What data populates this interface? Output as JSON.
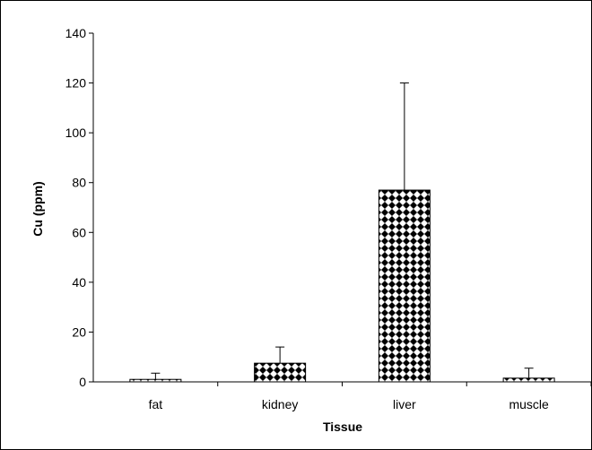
{
  "chart_data": {
    "type": "bar",
    "categories": [
      "fat",
      "kidney",
      "liver",
      "muscle"
    ],
    "series": [
      {
        "values": [
          1,
          7.5,
          77,
          1.5
        ],
        "error_upper": [
          3.5,
          14,
          120,
          5.5
        ]
      }
    ],
    "title": "",
    "xlabel": "Tissue",
    "ylabel": "Cu (ppm)",
    "ylim": [
      0,
      140
    ],
    "yticks": [
      0,
      20,
      40,
      60,
      80,
      100,
      120,
      140
    ],
    "grid": false,
    "legend": "none",
    "colors": {
      "bar_fill_pattern": "diamond-checker",
      "bar_dark": "#000000",
      "bar_light": "#ffffff",
      "axis": "#000000",
      "background": "#ffffff"
    }
  }
}
